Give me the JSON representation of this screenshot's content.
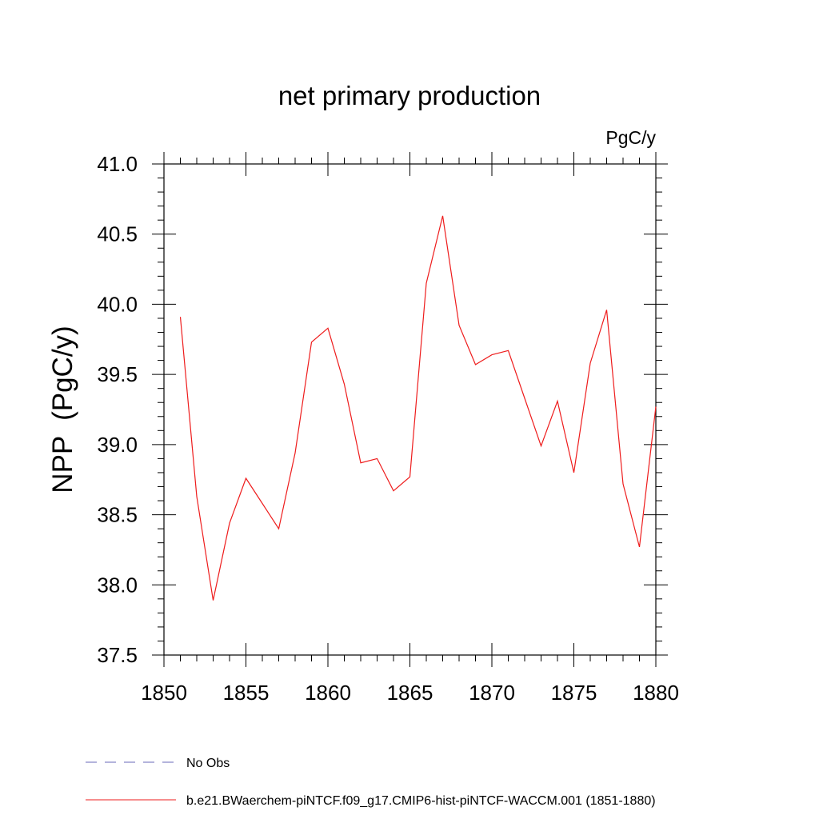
{
  "chart_data": {
    "type": "line",
    "title": "net primary production",
    "units": "PgC/y",
    "ylabel": "NPP  (PgC/y)",
    "xlabel": "",
    "xlim": [
      1850,
      1880
    ],
    "ylim": [
      37.5,
      41.0
    ],
    "x_ticks": [
      1850,
      1855,
      1860,
      1865,
      1870,
      1875,
      1880
    ],
    "x_tick_labels": [
      "1850",
      "1855",
      "1860",
      "1865",
      "1870",
      "1875",
      "1880"
    ],
    "y_ticks": [
      37.5,
      38.0,
      38.5,
      39.0,
      39.5,
      40.0,
      40.5,
      41.0
    ],
    "y_tick_labels": [
      "37.5",
      "38.0",
      "38.5",
      "39.0",
      "39.5",
      "40.0",
      "40.5",
      "41.0"
    ],
    "grid": false,
    "legend_position": "bottom",
    "series": [
      {
        "name": "No Obs",
        "color": "#6a6ab8",
        "dash": "dashed",
        "x": [],
        "y": []
      },
      {
        "name": "b.e21.BWaerchem-piNTCF.f09_g17.CMIP6-hist-piNTCF-WACCM.001 (1851-1880)",
        "color": "#ee1c1c",
        "dash": "solid",
        "x": [
          1851,
          1852,
          1853,
          1854,
          1855,
          1856,
          1857,
          1858,
          1859,
          1860,
          1861,
          1862,
          1863,
          1864,
          1865,
          1866,
          1867,
          1868,
          1869,
          1870,
          1871,
          1872,
          1873,
          1874,
          1875,
          1876,
          1877,
          1878,
          1879,
          1880
        ],
        "y": [
          39.91,
          38.63,
          37.89,
          38.44,
          38.76,
          38.58,
          38.4,
          38.94,
          39.73,
          39.83,
          39.43,
          38.87,
          38.9,
          38.67,
          38.77,
          40.15,
          40.63,
          39.85,
          39.57,
          39.64,
          39.67,
          39.33,
          38.99,
          39.31,
          38.8,
          39.58,
          39.96,
          38.72,
          38.27,
          39.27
        ]
      }
    ]
  }
}
